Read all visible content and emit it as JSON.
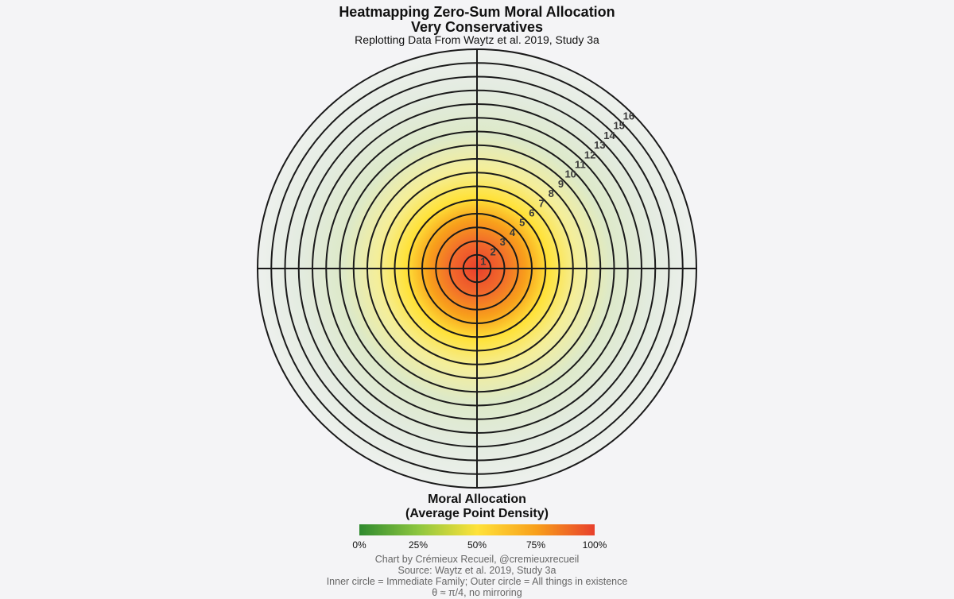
{
  "header": {
    "title_line1": "Heatmapping Zero-Sum Moral Allocation",
    "title_line2": "Very Conservatives",
    "subtitle": "Replotting Data From Waytz et al. 2019, Study 3a"
  },
  "chart_data": {
    "type": "polar-heatmap",
    "rings": [
      "1",
      "2",
      "3",
      "4",
      "5",
      "6",
      "7",
      "8",
      "9",
      "10",
      "11",
      "12",
      "13",
      "14",
      "15",
      "16"
    ],
    "density_center": [
      0,
      0
    ],
    "legend": {
      "title_line1": "Moral Allocation",
      "title_line2": "(Average Point Density)",
      "ticks": [
        "0%",
        "25%",
        "50%",
        "75%",
        "100%"
      ],
      "colors": [
        "#2f8a2f",
        "#8dc63f",
        "#ffe23a",
        "#f8a01b",
        "#e8402c"
      ]
    }
  },
  "footer": {
    "line1": "Chart by Crémieux Recueil, @cremieuxrecueil",
    "line2": "Source: Waytz et al. 2019, Study 3a",
    "line3": "Inner circle = Immediate Family; Outer circle = All things in existence",
    "line4": "θ ≈ π/4, no mirroring"
  }
}
